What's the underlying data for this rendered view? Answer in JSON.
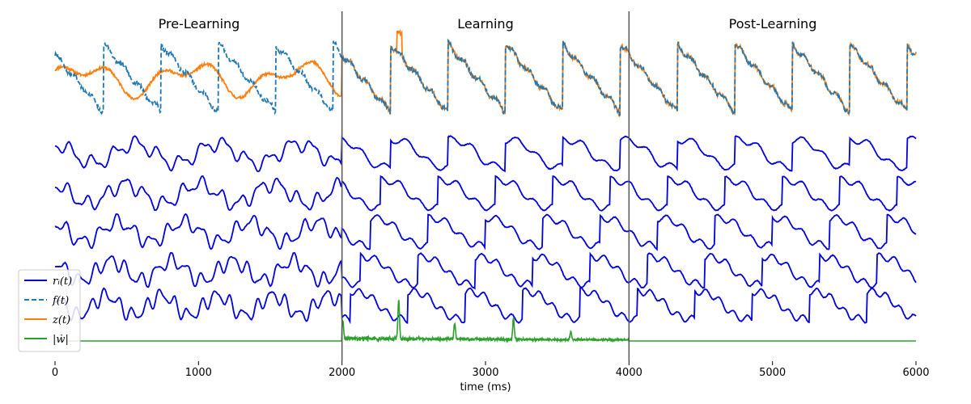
{
  "chart_data": {
    "type": "line",
    "phases": [
      {
        "title": "Pre-Learning",
        "x_range": [
          0,
          2000
        ]
      },
      {
        "title": "Learning",
        "x_range": [
          2000,
          4000
        ]
      },
      {
        "title": "Post-Learning",
        "x_range": [
          4000,
          6000
        ]
      }
    ],
    "phase_boundaries": [
      2000,
      4000
    ],
    "xlabel": "time (ms)",
    "xlim": [
      0,
      6000
    ],
    "x_ticks": [
      0,
      1000,
      2000,
      3000,
      4000,
      5000,
      6000
    ],
    "grid": false,
    "legend_position": "lower-left",
    "legend": [
      {
        "label": "r_i(t)",
        "display": "rᵢ(t)",
        "color": "#0000dd",
        "style": "solid"
      },
      {
        "label": "f(t)",
        "display": "f(t)",
        "color": "#1f77b4",
        "style": "dashed"
      },
      {
        "label": "z(t)",
        "display": "z(t)",
        "color": "#ff7f0e",
        "style": "solid"
      },
      {
        "label": "|w_dot|",
        "display": "|ẇ|",
        "color": "#2ca02c",
        "style": "solid"
      }
    ],
    "series": [
      {
        "name": "f(t)",
        "kind": "sawtooth",
        "period_ms": 400,
        "t": [
          0,
          200,
          400,
          600,
          800,
          1000,
          1200,
          1400,
          1600,
          1800,
          2000,
          2400,
          2800,
          3200,
          3600,
          4000,
          4400,
          4800,
          5200,
          5600,
          6000
        ],
        "values": [
          0.2,
          1.0,
          -1.0,
          1.0,
          -1.0,
          1.0,
          -1.0,
          1.0,
          -1.0,
          1.0,
          -1.0,
          1.0,
          1.0,
          1.0,
          1.0,
          1.0,
          1.0,
          1.0,
          1.0,
          1.0,
          -0.6
        ]
      },
      {
        "name": "z(t)",
        "kind": "readout",
        "t": [
          0,
          500,
          1000,
          1500,
          2000,
          2020,
          2400,
          2420,
          3000,
          4000,
          5000,
          6000
        ],
        "values": [
          0.2,
          0.3,
          0.4,
          0.0,
          -0.4,
          1.1,
          1.2,
          1.0,
          1.0,
          1.0,
          1.0,
          0.2
        ]
      },
      {
        "name": "r_1(t)",
        "kind": "neuron"
      },
      {
        "name": "r_2(t)",
        "kind": "neuron"
      },
      {
        "name": "r_3(t)",
        "kind": "neuron"
      },
      {
        "name": "r_4(t)",
        "kind": "neuron"
      },
      {
        "name": "r_5(t)",
        "kind": "neuron"
      },
      {
        "name": "|w_dot|",
        "kind": "weight-change",
        "t": [
          0,
          2000,
          2010,
          2400,
          2790,
          3200,
          3600,
          4000,
          6000
        ],
        "values": [
          0,
          0,
          0.45,
          1.0,
          0.45,
          0.55,
          0.2,
          0,
          0
        ]
      }
    ]
  }
}
